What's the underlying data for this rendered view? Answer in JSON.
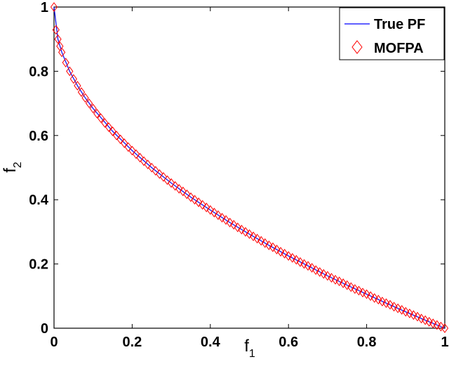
{
  "chart_data": {
    "type": "line",
    "xlabel": "f",
    "xlabel_sub": "1",
    "ylabel": "f",
    "ylabel_sub": "2",
    "xlim": [
      0,
      1
    ],
    "ylim": [
      0,
      1
    ],
    "xticks": [
      0,
      0.2,
      0.4,
      0.6,
      0.8,
      1
    ],
    "xtick_labels": [
      "0",
      "0.2",
      "0.4",
      "0.6",
      "0.8",
      "1"
    ],
    "yticks": [
      0,
      0.2,
      0.4,
      0.6,
      0.8,
      1
    ],
    "ytick_labels": [
      "0",
      "0.2",
      "0.4",
      "0.6",
      "0.8",
      "1"
    ],
    "grid": false,
    "legend_position": "top-right",
    "series": [
      {
        "name": "True PF",
        "style": "line",
        "color": "#0000ff",
        "x": [
          0,
          0.01,
          0.02,
          0.04,
          0.06,
          0.08,
          0.1,
          0.15,
          0.2,
          0.25,
          0.3,
          0.35,
          0.4,
          0.45,
          0.5,
          0.55,
          0.6,
          0.65,
          0.7,
          0.75,
          0.8,
          0.85,
          0.9,
          0.95,
          1
        ],
        "y": [
          1,
          0.9,
          0.859,
          0.8,
          0.755,
          0.717,
          0.684,
          0.613,
          0.553,
          0.5,
          0.452,
          0.408,
          0.368,
          0.329,
          0.293,
          0.258,
          0.225,
          0.194,
          0.163,
          0.134,
          0.106,
          0.078,
          0.051,
          0.025,
          0
        ]
      },
      {
        "name": "MOFPA",
        "style": "marker",
        "marker": "diamond",
        "color": "#ff0000",
        "x": [
          0,
          0.005,
          0.01,
          0.015,
          0.02,
          0.03,
          0.04,
          0.05,
          0.06,
          0.07,
          0.08,
          0.09,
          0.1,
          0.11,
          0.12,
          0.13,
          0.14,
          0.15,
          0.16,
          0.17,
          0.18,
          0.19,
          0.2,
          0.21,
          0.22,
          0.23,
          0.24,
          0.25,
          0.26,
          0.27,
          0.28,
          0.29,
          0.3,
          0.31,
          0.32,
          0.33,
          0.34,
          0.35,
          0.36,
          0.37,
          0.38,
          0.39,
          0.4,
          0.41,
          0.42,
          0.43,
          0.44,
          0.45,
          0.46,
          0.47,
          0.48,
          0.49,
          0.5,
          0.51,
          0.52,
          0.53,
          0.54,
          0.55,
          0.56,
          0.57,
          0.58,
          0.59,
          0.6,
          0.61,
          0.62,
          0.63,
          0.64,
          0.65,
          0.66,
          0.67,
          0.68,
          0.69,
          0.7,
          0.71,
          0.72,
          0.73,
          0.74,
          0.75,
          0.76,
          0.77,
          0.78,
          0.79,
          0.8,
          0.81,
          0.82,
          0.83,
          0.84,
          0.85,
          0.86,
          0.87,
          0.88,
          0.89,
          0.9,
          0.91,
          0.92,
          0.93,
          0.94,
          0.95,
          0.96,
          0.97,
          0.98,
          0.99,
          1
        ],
        "y": [
          1,
          0.929,
          0.9,
          0.878,
          0.859,
          0.827,
          0.8,
          0.776,
          0.755,
          0.735,
          0.717,
          0.7,
          0.684,
          0.668,
          0.654,
          0.639,
          0.626,
          0.613,
          0.6,
          0.588,
          0.576,
          0.564,
          0.553,
          0.542,
          0.531,
          0.52,
          0.51,
          0.5,
          0.49,
          0.48,
          0.471,
          0.461,
          0.452,
          0.443,
          0.434,
          0.426,
          0.417,
          0.408,
          0.4,
          0.392,
          0.384,
          0.376,
          0.368,
          0.36,
          0.352,
          0.344,
          0.337,
          0.329,
          0.322,
          0.314,
          0.307,
          0.3,
          0.293,
          0.286,
          0.279,
          0.272,
          0.265,
          0.258,
          0.252,
          0.245,
          0.238,
          0.232,
          0.225,
          0.219,
          0.213,
          0.206,
          0.2,
          0.194,
          0.188,
          0.181,
          0.175,
          0.169,
          0.163,
          0.157,
          0.151,
          0.146,
          0.14,
          0.134,
          0.128,
          0.122,
          0.117,
          0.111,
          0.106,
          0.1,
          0.094,
          0.089,
          0.083,
          0.078,
          0.073,
          0.067,
          0.062,
          0.057,
          0.051,
          0.046,
          0.041,
          0.036,
          0.03,
          0.025,
          0.02,
          0.015,
          0.01,
          0.005,
          0
        ]
      }
    ]
  }
}
